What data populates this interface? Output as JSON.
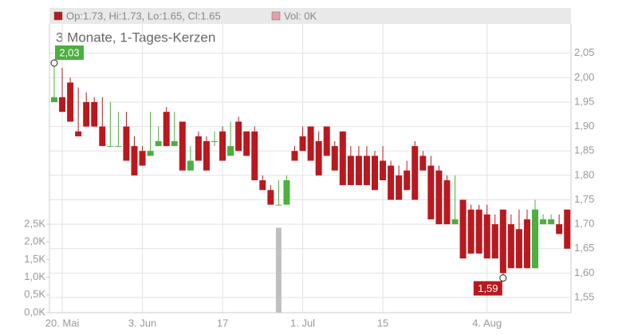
{
  "chart_data": {
    "type": "candlestick",
    "header": "Op:1.73, Hi:1.73, Lo:1.65, Cl:1.65",
    "volume_header": "Vol: 0K",
    "subtitle": "3 Monate, 1-Tages-Kerzen",
    "categories": [
      null,
      "20. Mai",
      null,
      null,
      null,
      null,
      null,
      null,
      null,
      null,
      null,
      "3. Jun",
      null,
      null,
      null,
      null,
      null,
      null,
      null,
      null,
      null,
      "17",
      null,
      null,
      null,
      null,
      null,
      null,
      null,
      null,
      null,
      "1. Jul",
      null,
      null,
      null,
      null,
      null,
      null,
      null,
      null,
      null,
      "15",
      null,
      null,
      null,
      null,
      null,
      null,
      null,
      null,
      null,
      null,
      null,
      null,
      "4. Aug",
      null,
      null,
      null,
      null,
      null,
      null,
      null,
      null,
      null,
      null
    ],
    "open": [
      1.95,
      1.96,
      1.99,
      1.89,
      1.95,
      1.95,
      1.9,
      1.86,
      1.86,
      1.9,
      1.86,
      1.85,
      1.84,
      1.86,
      1.93,
      1.86,
      1.91,
      1.81,
      1.88,
      1.87,
      1.87,
      1.89,
      1.84,
      1.91,
      1.89,
      1.89,
      1.79,
      1.77,
      1.74,
      1.74,
      1.85,
      1.88,
      1.9,
      1.87,
      1.9,
      1.86,
      1.89,
      1.84,
      1.84,
      1.84,
      1.84,
      1.83,
      1.82,
      1.8,
      1.81,
      1.86,
      1.84,
      1.82,
      1.81,
      1.79,
      1.7,
      1.75,
      1.73,
      1.73,
      1.72,
      1.7,
      1.73,
      1.7,
      1.69,
      1.71,
      1.61,
      1.7,
      1.7,
      1.7,
      1.73
    ],
    "high": [
      2.03,
      2.02,
      2.0,
      1.98,
      1.97,
      1.96,
      1.96,
      1.95,
      1.93,
      1.93,
      1.88,
      1.86,
      1.93,
      1.9,
      1.94,
      1.93,
      1.91,
      1.86,
      1.89,
      1.88,
      1.89,
      1.9,
      1.91,
      1.92,
      1.89,
      1.9,
      1.8,
      1.78,
      1.79,
      1.8,
      1.86,
      1.9,
      1.9,
      1.89,
      1.9,
      1.87,
      1.89,
      1.86,
      1.86,
      1.86,
      1.85,
      1.86,
      1.83,
      1.82,
      1.83,
      1.87,
      1.85,
      1.84,
      1.82,
      1.8,
      1.8,
      1.75,
      1.74,
      1.74,
      1.74,
      1.72,
      1.73,
      1.72,
      1.73,
      1.73,
      1.75,
      1.72,
      1.72,
      1.72,
      1.73
    ],
    "low": [
      1.95,
      1.93,
      1.91,
      1.88,
      1.9,
      1.9,
      1.86,
      1.86,
      1.86,
      1.83,
      1.8,
      1.82,
      1.84,
      1.86,
      1.86,
      1.86,
      1.81,
      1.81,
      1.83,
      1.81,
      1.86,
      1.83,
      1.84,
      1.85,
      1.84,
      1.79,
      1.77,
      1.74,
      1.74,
      1.74,
      1.83,
      1.85,
      1.83,
      1.8,
      1.84,
      1.81,
      1.78,
      1.78,
      1.78,
      1.78,
      1.77,
      1.79,
      1.75,
      1.75,
      1.77,
      1.75,
      1.81,
      1.71,
      1.7,
      1.7,
      1.7,
      1.63,
      1.64,
      1.64,
      1.63,
      1.63,
      1.59,
      1.61,
      1.61,
      1.61,
      1.61,
      1.7,
      1.7,
      1.68,
      1.65
    ],
    "close": [
      1.96,
      1.93,
      1.91,
      1.88,
      1.9,
      1.9,
      1.86,
      1.86,
      1.86,
      1.83,
      1.8,
      1.82,
      1.85,
      1.87,
      1.86,
      1.87,
      1.81,
      1.83,
      1.83,
      1.81,
      1.87,
      1.83,
      1.86,
      1.85,
      1.84,
      1.79,
      1.77,
      1.74,
      1.74,
      1.79,
      1.83,
      1.85,
      1.83,
      1.8,
      1.84,
      1.81,
      1.78,
      1.78,
      1.78,
      1.78,
      1.77,
      1.79,
      1.75,
      1.75,
      1.77,
      1.75,
      1.81,
      1.71,
      1.7,
      1.7,
      1.71,
      1.63,
      1.64,
      1.64,
      1.63,
      1.63,
      1.6,
      1.61,
      1.61,
      1.61,
      1.73,
      1.71,
      1.71,
      1.68,
      1.65
    ],
    "volume": [
      0,
      0,
      0,
      0,
      0,
      0,
      0,
      0,
      0,
      0,
      0,
      0,
      0,
      0,
      0,
      0,
      0,
      0,
      0,
      0,
      0,
      0,
      0,
      0,
      0,
      0,
      0,
      0,
      2.4,
      0,
      0,
      0,
      0,
      0,
      0,
      0,
      0,
      0,
      0,
      0,
      0,
      0,
      0,
      0,
      0,
      0,
      0,
      0,
      0,
      0,
      0,
      0,
      0,
      0,
      0,
      0,
      0,
      0,
      0,
      0,
      0,
      0,
      0,
      0,
      0
    ],
    "up_color": "#4caf3f",
    "down_color": "#b8191f",
    "volume_color": "#c0c0c0",
    "volume_header_color": "#e8a0a8",
    "ylim": [
      1.519,
      2.11
    ],
    "yticks": [
      {
        "value": 1.55,
        "label": "1,55"
      },
      {
        "value": 1.6,
        "label": "1,60"
      },
      {
        "value": 1.65,
        "label": "1,65"
      },
      {
        "value": 1.7,
        "label": "1,70"
      },
      {
        "value": 1.75,
        "label": "1,75"
      },
      {
        "value": 1.8,
        "label": "1,80"
      },
      {
        "value": 1.85,
        "label": "1,85"
      },
      {
        "value": 1.9,
        "label": "1,90"
      },
      {
        "value": 1.95,
        "label": "1,95"
      },
      {
        "value": 2.0,
        "label": "2,00"
      },
      {
        "value": 2.05,
        "label": "2,05"
      }
    ],
    "y2lim": [
      0,
      8.15
    ],
    "y2ticks": [
      {
        "value": 0,
        "label": "0,0K"
      },
      {
        "value": 0.5,
        "label": "0,5K"
      },
      {
        "value": 1,
        "label": "1,0K"
      },
      {
        "value": 1.5,
        "label": "1,5K"
      },
      {
        "value": 2,
        "label": "2,0K"
      },
      {
        "value": 2.5,
        "label": "2,5K"
      }
    ],
    "annotations": [
      {
        "label": "2,03",
        "value": 2.03
      },
      {
        "label": "1,59",
        "value": 1.59
      }
    ],
    "grid": true
  }
}
